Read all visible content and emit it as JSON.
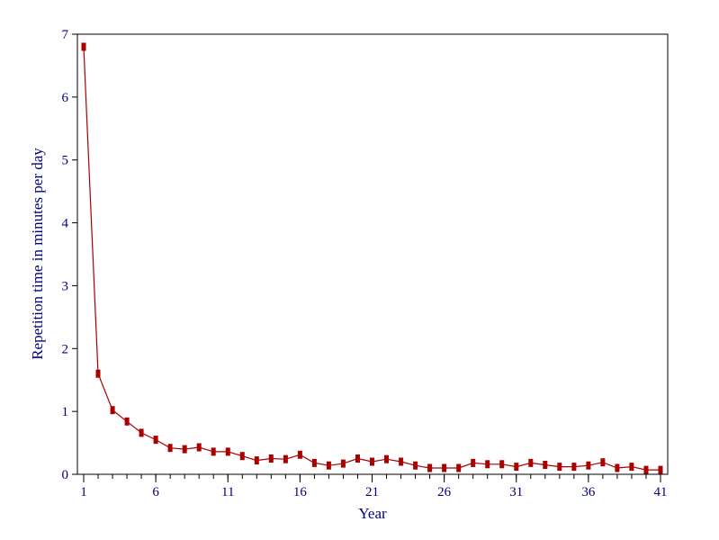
{
  "chart_data": {
    "type": "line",
    "xlabel": "Year",
    "ylabel": "Repetition time in minutes per day",
    "xlim": [
      1,
      41
    ],
    "ylim": [
      0,
      7
    ],
    "x_tick_labels": [
      "1",
      "6",
      "11",
      "16",
      "21",
      "26",
      "31",
      "36",
      "41"
    ],
    "y_tick_labels": [
      "0",
      "1",
      "2",
      "3",
      "4",
      "5",
      "6",
      "7"
    ],
    "grid": false,
    "legend": "none",
    "colors": {
      "line": "#aa0000",
      "marker": "#aa0000",
      "axis_text": "#000080",
      "frame": "#000000"
    },
    "series": [
      {
        "x": [
          1,
          2,
          3,
          4,
          5,
          6,
          7,
          8,
          9,
          10,
          11,
          12,
          13,
          14,
          15,
          16,
          17,
          18,
          19,
          20,
          21,
          22,
          23,
          24,
          25,
          26,
          27,
          28,
          29,
          30,
          31,
          32,
          33,
          34,
          35,
          36,
          37,
          38,
          39,
          40,
          41
        ],
        "values": [
          6.8,
          1.6,
          1.02,
          0.84,
          0.66,
          0.55,
          0.42,
          0.4,
          0.43,
          0.36,
          0.36,
          0.29,
          0.22,
          0.25,
          0.24,
          0.31,
          0.18,
          0.14,
          0.17,
          0.25,
          0.2,
          0.24,
          0.2,
          0.14,
          0.1,
          0.1,
          0.1,
          0.18,
          0.16,
          0.16,
          0.12,
          0.18,
          0.15,
          0.12,
          0.12,
          0.14,
          0.19,
          0.1,
          0.12,
          0.07,
          0.07
        ]
      }
    ]
  }
}
